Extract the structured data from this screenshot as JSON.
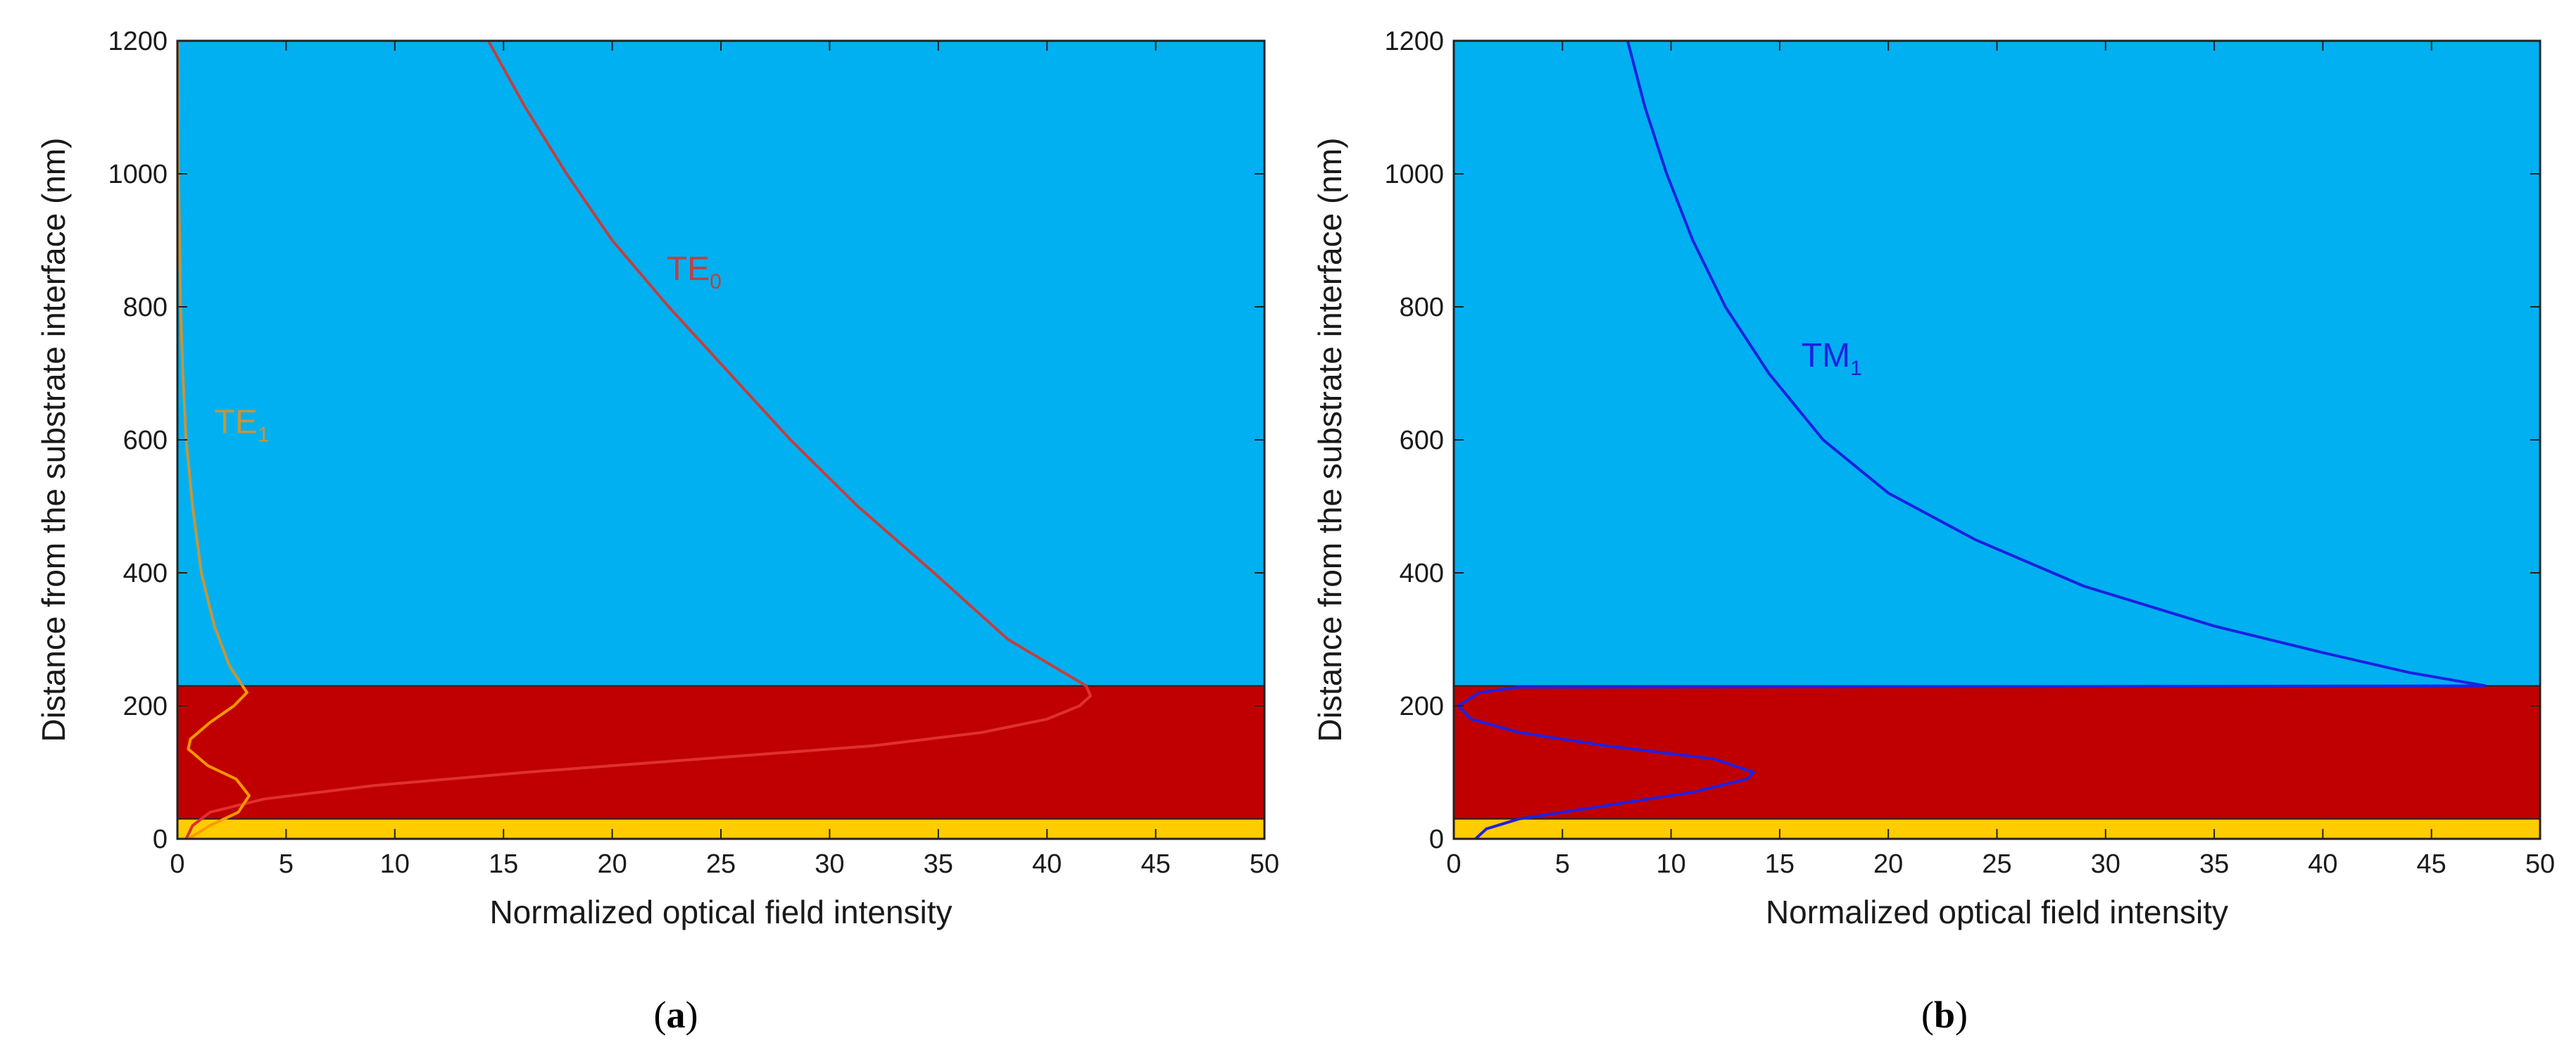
{
  "chart_data": [
    {
      "type": "line",
      "panel_label": {
        "open": "(",
        "letter": "a",
        "close": ")"
      },
      "xlabel": "Normalized optical field intensity",
      "ylabel": "Distance from the substrate interface (nm)",
      "xlim": [
        0,
        50
      ],
      "ylim": [
        0,
        1200
      ],
      "x_ticks": [
        0,
        5,
        10,
        15,
        20,
        25,
        30,
        35,
        40,
        45,
        50
      ],
      "y_ticks": [
        0,
        200,
        400,
        600,
        800,
        1000,
        1200
      ],
      "grid": false,
      "layers": [
        {
          "y_from": 0,
          "y_to": 30,
          "color": "#ffcc00"
        },
        {
          "y_from": 30,
          "y_to": 230,
          "color": "#c00000"
        },
        {
          "y_from": 230,
          "y_to": 1200,
          "color": "#00b0f0"
        }
      ],
      "series": [
        {
          "name": "TE0",
          "label_main": "TE",
          "label_sub": "0",
          "label_at": [
            22.5,
            840
          ],
          "colors": [
            "#e03030",
            "#c04040"
          ],
          "points": [
            [
              0.4,
              0
            ],
            [
              0.7,
              20
            ],
            [
              1.5,
              40
            ],
            [
              4,
              60
            ],
            [
              9,
              80
            ],
            [
              16,
              100
            ],
            [
              24,
              120
            ],
            [
              32,
              140
            ],
            [
              37,
              160
            ],
            [
              40,
              180
            ],
            [
              41.5,
              200
            ],
            [
              42,
              215
            ],
            [
              41.8,
              230
            ],
            [
              38.2,
              300
            ],
            [
              34.8,
              400
            ],
            [
              31.3,
              500
            ],
            [
              28.2,
              600
            ],
            [
              25.4,
              700
            ],
            [
              22.6,
              800
            ],
            [
              20,
              900
            ],
            [
              17.9,
              1000
            ],
            [
              16,
              1100
            ],
            [
              14.3,
              1200
            ]
          ]
        },
        {
          "name": "TE1",
          "label_main": "TE",
          "label_sub": "1",
          "label_at": [
            1.7,
            610
          ],
          "colors": [
            "#ff9900",
            "#c8943a"
          ],
          "points": [
            [
              0.5,
              0
            ],
            [
              1.5,
              20
            ],
            [
              2.8,
              40
            ],
            [
              3.3,
              65
            ],
            [
              2.7,
              90
            ],
            [
              1.4,
              110
            ],
            [
              0.5,
              135
            ],
            [
              0.6,
              150
            ],
            [
              1.5,
              175
            ],
            [
              2.6,
              200
            ],
            [
              3.2,
              220
            ],
            [
              3,
              230
            ],
            [
              2.4,
              260
            ],
            [
              1.7,
              320
            ],
            [
              1.1,
              400
            ],
            [
              0.7,
              500
            ],
            [
              0.4,
              600
            ],
            [
              0.25,
              700
            ],
            [
              0.15,
              800
            ],
            [
              0.1,
              900
            ],
            [
              0.05,
              1000
            ],
            [
              0.03,
              1100
            ],
            [
              0.02,
              1200
            ]
          ]
        }
      ]
    },
    {
      "type": "line",
      "panel_label": {
        "open": "(",
        "letter": "b",
        "close": ")"
      },
      "xlabel": "Normalized optical field intensity",
      "ylabel": "Distance from the substrate interface (nm)",
      "xlim": [
        0,
        50
      ],
      "ylim": [
        0,
        1200
      ],
      "x_ticks": [
        0,
        5,
        10,
        15,
        20,
        25,
        30,
        35,
        40,
        45,
        50
      ],
      "y_ticks": [
        0,
        200,
        400,
        600,
        800,
        1000,
        1200
      ],
      "grid": false,
      "layers": [
        {
          "y_from": 0,
          "y_to": 30,
          "color": "#ffcc00"
        },
        {
          "y_from": 30,
          "y_to": 230,
          "color": "#c00000"
        },
        {
          "y_from": 230,
          "y_to": 1200,
          "color": "#00b0f0"
        }
      ],
      "series": [
        {
          "name": "TM1",
          "label_main": "TM",
          "label_sub": "1",
          "label_at": [
            16,
            710
          ],
          "colors": [
            "#2020e0",
            "#2020e0"
          ],
          "points": [
            [
              1,
              0
            ],
            [
              1.5,
              15
            ],
            [
              3,
              30
            ],
            [
              7,
              50
            ],
            [
              11,
              70
            ],
            [
              13.5,
              90
            ],
            [
              13.8,
              100
            ],
            [
              12,
              120
            ],
            [
              7,
              140
            ],
            [
              3,
              160
            ],
            [
              0.8,
              180
            ],
            [
              0.2,
              200
            ],
            [
              1.2,
              220
            ],
            [
              3,
              228
            ],
            [
              47.5,
              230
            ],
            [
              44,
              250
            ],
            [
              40,
              280
            ],
            [
              35,
              320
            ],
            [
              29,
              380
            ],
            [
              24,
              450
            ],
            [
              20,
              520
            ],
            [
              17,
              600
            ],
            [
              14.5,
              700
            ],
            [
              12.5,
              800
            ],
            [
              11,
              900
            ],
            [
              9.8,
              1000
            ],
            [
              8.8,
              1100
            ],
            [
              8,
              1200
            ]
          ]
        }
      ]
    }
  ]
}
